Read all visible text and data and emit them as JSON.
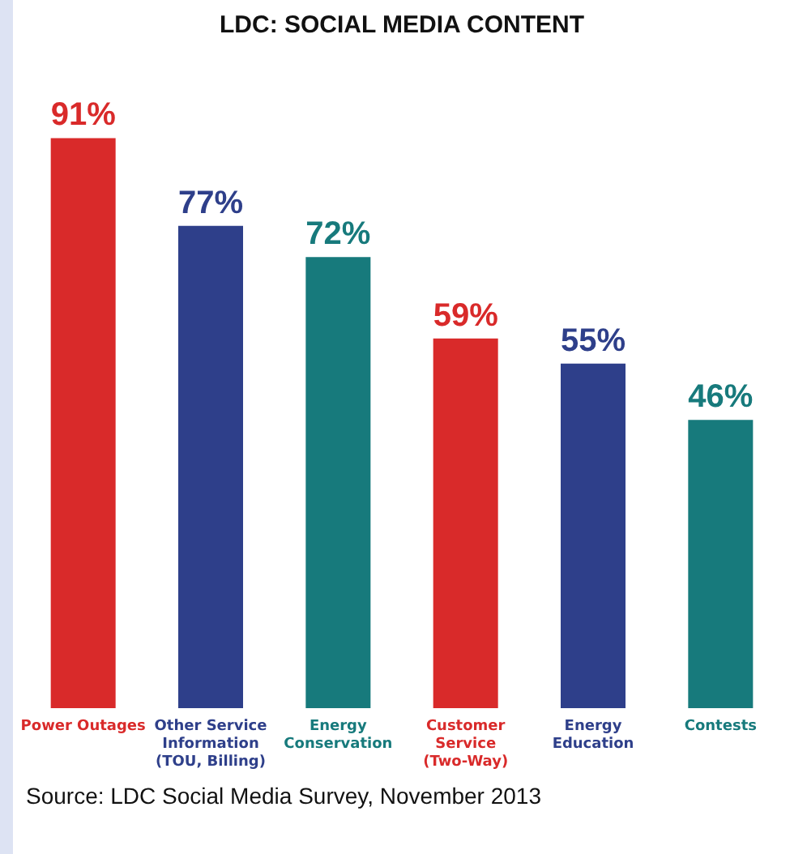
{
  "chart_data": {
    "type": "bar",
    "title": "LDC: SOCIAL MEDIA CONTENT",
    "categories": [
      "Power Outages",
      "Other Service Information (TOU, Billing)",
      "Energy Conservation",
      "Customer Service (Two-Way)",
      "Energy Education",
      "Contests"
    ],
    "values": [
      91,
      77,
      72,
      59,
      55,
      46
    ],
    "value_labels": [
      "91%",
      "77%",
      "72%",
      "59%",
      "55%",
      "46%"
    ],
    "colors": [
      "#d92a2a",
      "#2e3f8a",
      "#177a7c",
      "#d92a2a",
      "#2e3f8a",
      "#177a7c"
    ],
    "annotations": [
      "Source: LDC Social Media Survey, November 2013"
    ]
  }
}
